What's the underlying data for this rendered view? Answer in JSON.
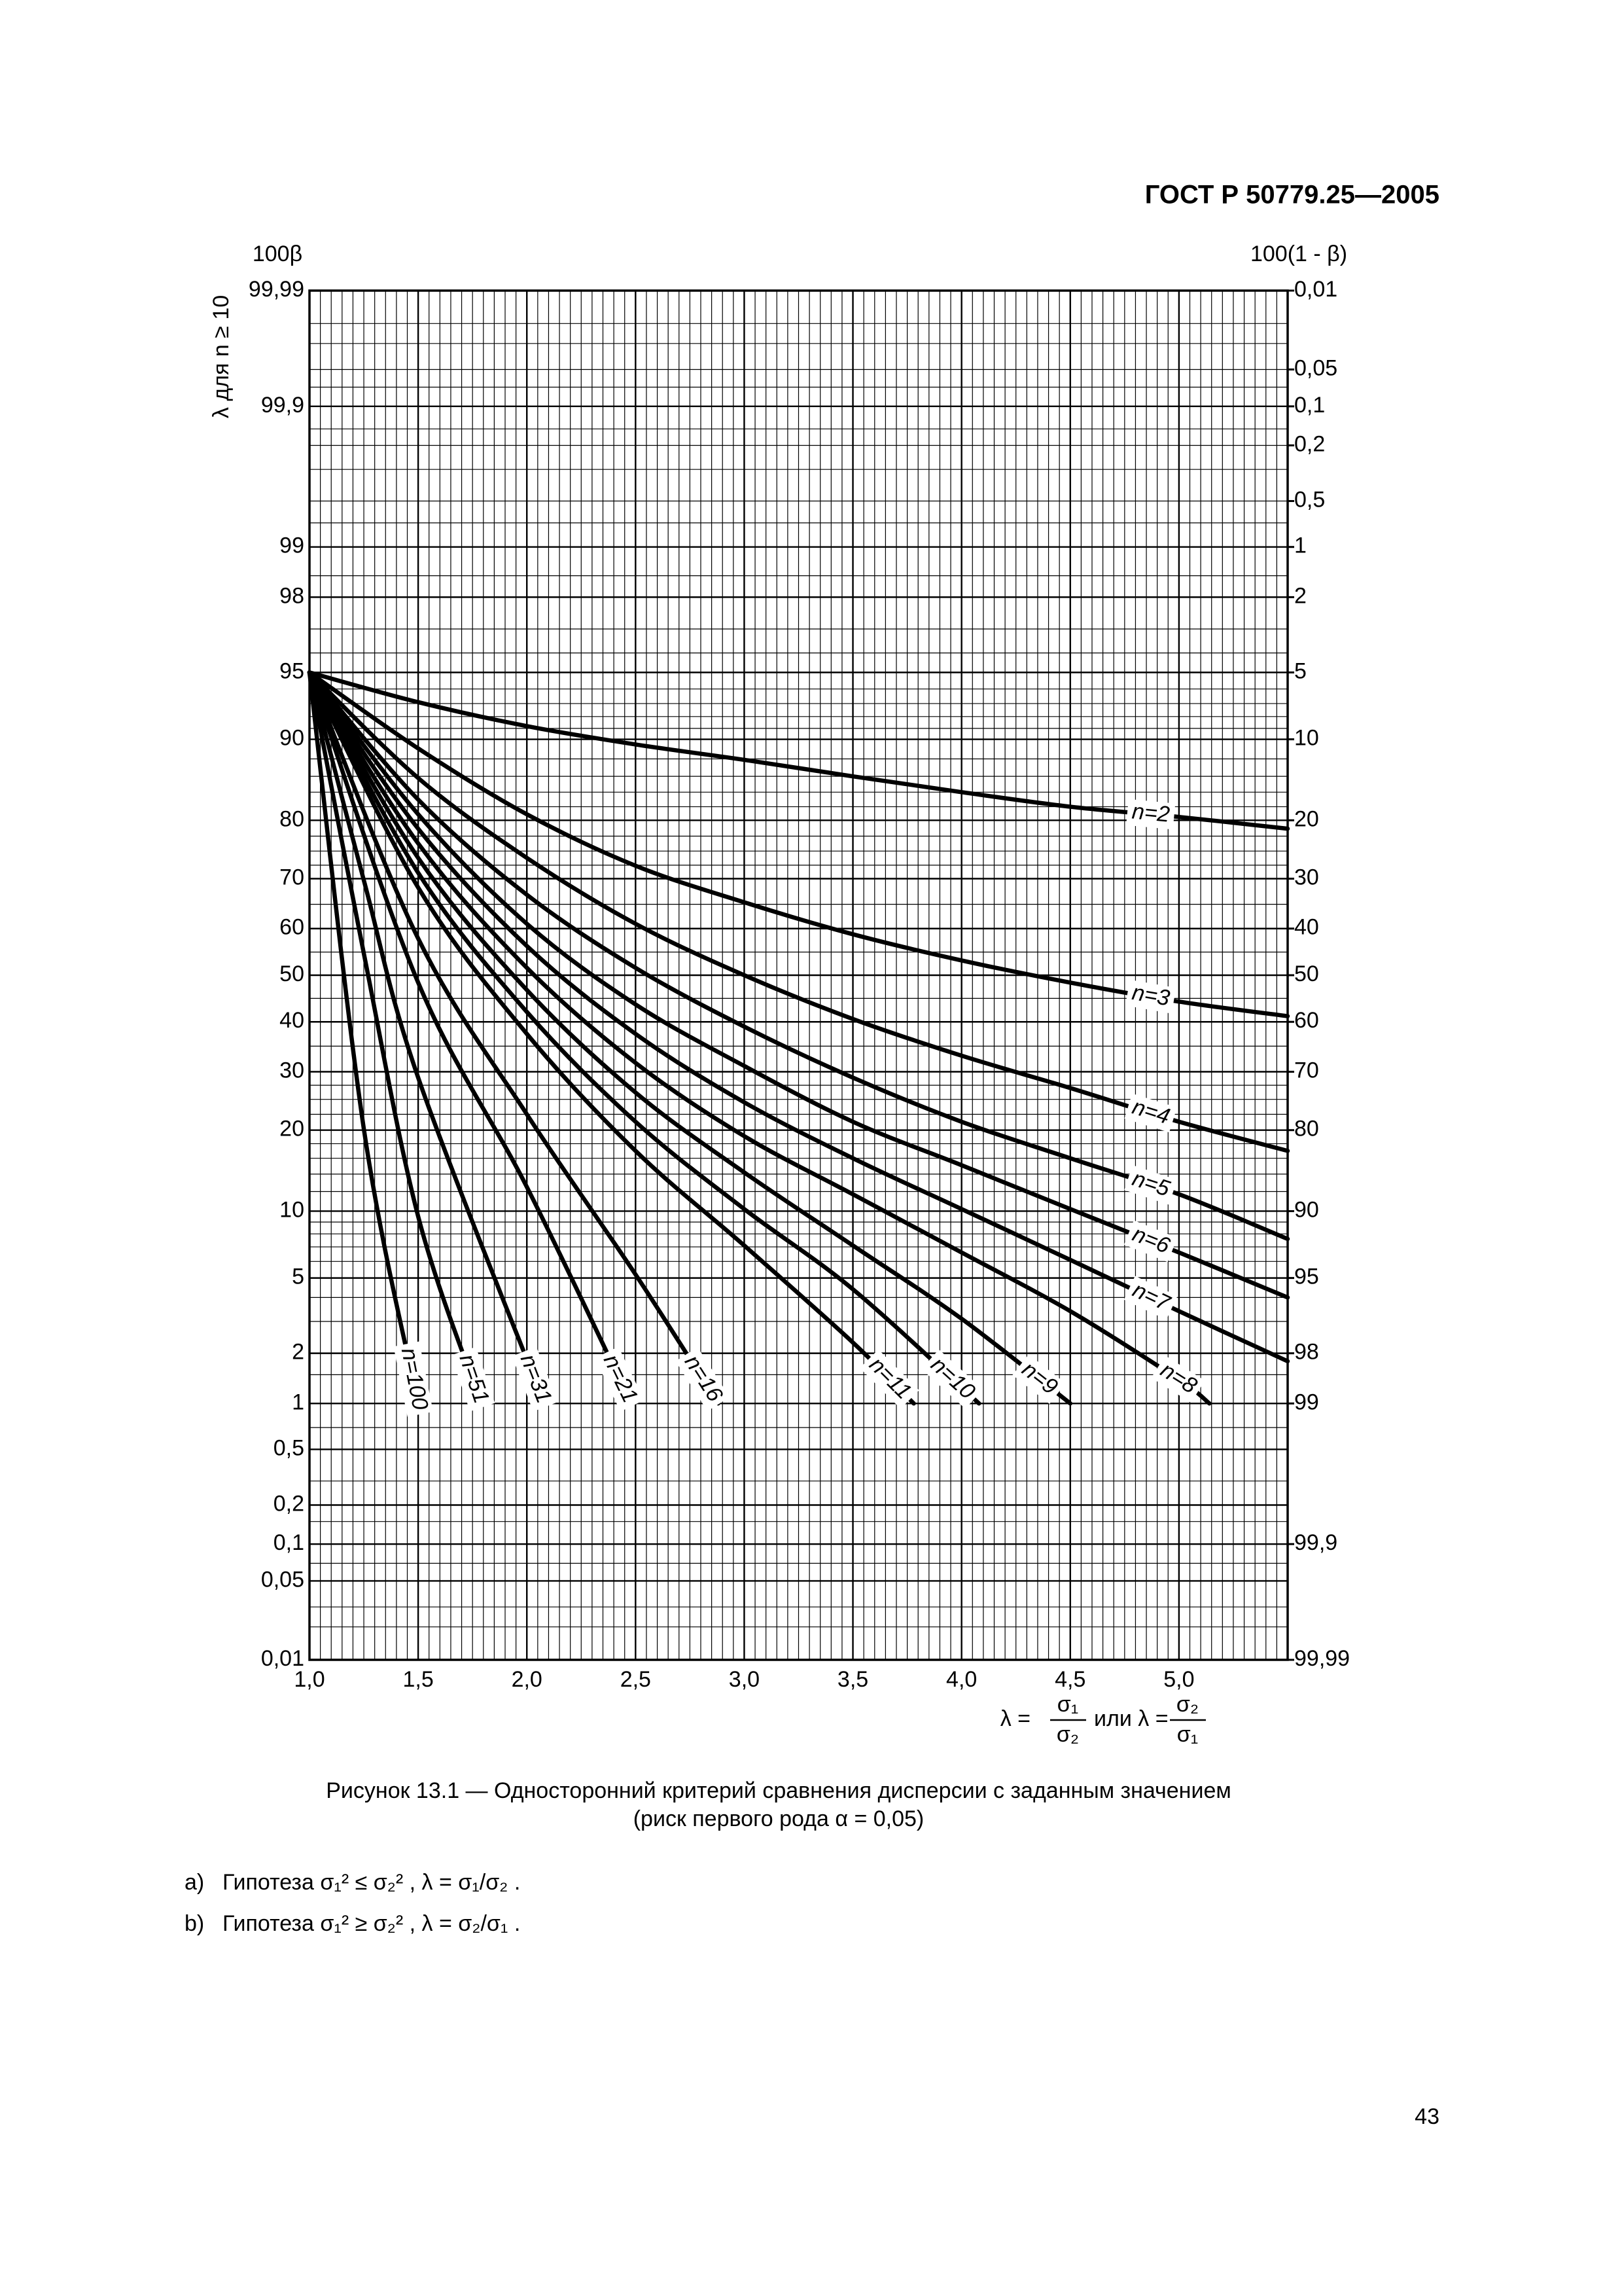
{
  "header": "ГОСТ Р 50779.25—2005",
  "chart_data": {
    "type": "line",
    "ylabel": "100β",
    "y2label": "100(1 - β)",
    "annotation": "λ для n ≥ 10",
    "scale": "probability",
    "xlim": [
      1,
      5.5
    ],
    "xticks": [
      {
        "value": 1,
        "label": "1,0"
      },
      {
        "value": 1.5,
        "label": "1,5"
      },
      {
        "value": 2,
        "label": "2,0"
      },
      {
        "value": 2.5,
        "label": "2,5"
      },
      {
        "value": 3,
        "label": "3,0"
      },
      {
        "value": 3.5,
        "label": "3,5"
      },
      {
        "value": 4,
        "label": "4,0"
      },
      {
        "value": 4.5,
        "label": "4,5"
      },
      {
        "value": 5,
        "label": "5,0"
      }
    ],
    "xgrid": [
      1,
      1.05,
      1.1,
      1.15,
      1.2,
      1.25,
      1.3,
      1.35,
      1.4,
      1.45,
      1.5,
      1.55,
      1.6,
      1.65,
      1.7,
      1.75,
      1.8,
      1.85,
      1.9,
      1.95,
      2,
      2.05,
      2.1,
      2.15,
      2.2,
      2.25,
      2.3,
      2.35,
      2.4,
      2.45,
      2.5,
      2.55,
      2.6,
      2.65,
      2.7,
      2.75,
      2.8,
      2.85,
      2.9,
      2.95,
      3,
      3.05,
      3.1,
      3.15,
      3.2,
      3.25,
      3.3,
      3.35,
      3.4,
      3.45,
      3.5,
      3.55,
      3.6,
      3.65,
      3.7,
      3.75,
      3.8,
      3.85,
      3.9,
      3.95,
      4,
      4.05,
      4.1,
      4.15,
      4.2,
      4.25,
      4.3,
      4.35,
      4.4,
      4.45,
      4.5,
      4.55,
      4.6,
      4.65,
      4.7,
      4.75,
      4.8,
      4.85,
      4.9,
      4.95,
      5,
      5.05,
      5.1,
      5.15,
      5.2,
      5.25,
      5.3,
      5.35,
      5.4,
      5.45,
      5.5
    ],
    "ylim": [
      0.01,
      99.99
    ],
    "yticks": [
      {
        "value": 99.99,
        "label": "99,99"
      },
      {
        "value": 99.9,
        "label": "99,9"
      },
      99,
      98,
      95,
      90,
      80,
      70,
      60,
      50,
      40,
      30,
      20,
      10,
      5,
      2,
      1,
      {
        "value": 0.5,
        "label": "0,5"
      },
      {
        "value": 0.2,
        "label": "0,2"
      },
      {
        "value": 0.1,
        "label": "0,1"
      },
      {
        "value": 0.05,
        "label": "0,05"
      },
      {
        "value": 0.01,
        "label": "0,01"
      }
    ],
    "y2lim": [
      99.99,
      0.01
    ],
    "y2ticks": [
      {
        "value": 0.01,
        "label": "0,01"
      },
      {
        "value": 0.05,
        "label": "0,05"
      },
      {
        "value": 0.1,
        "label": "0,1"
      },
      {
        "value": 0.2,
        "label": "0,2"
      },
      {
        "value": 0.5,
        "label": "0,5"
      },
      1,
      2,
      5,
      10,
      20,
      30,
      40,
      50,
      60,
      70,
      80,
      90,
      95,
      98,
      99,
      {
        "value": 99.9,
        "label": "99,9"
      },
      {
        "value": 99.99,
        "label": "99,99"
      }
    ],
    "ygrid": [
      0.01,
      0.02,
      0.03,
      0.05,
      0.07,
      0.1,
      0.15,
      0.2,
      0.3,
      0.5,
      0.7,
      1,
      1.5,
      2,
      3,
      4,
      5,
      6,
      7,
      8,
      9,
      10,
      12,
      14,
      16,
      18,
      20,
      22.5,
      25,
      27.5,
      30,
      35,
      40,
      45,
      50,
      55,
      60,
      65,
      70,
      72.5,
      75,
      77.5,
      80,
      82,
      84,
      86,
      88,
      90,
      91,
      92,
      93,
      94,
      95,
      96,
      97,
      98,
      98.5,
      99,
      99.3,
      99.5,
      99.7,
      99.8,
      99.85,
      99.9,
      99.93,
      99.95,
      99.97,
      99.98,
      99.99
    ],
    "grid": true,
    "color": "#000000",
    "series": [
      {
        "name": "n=2",
        "x": [
          1,
          1.5,
          2,
          2.5,
          3,
          3.5,
          4,
          4.5,
          5,
          5.5
        ],
        "values": [
          95,
          93.1,
          91.2,
          89.5,
          87.9,
          86,
          84,
          82,
          80.5,
          78.7
        ]
      },
      {
        "name": "n=3",
        "x": [
          1,
          1.5,
          2,
          2.5,
          3,
          3.5,
          4,
          4.5,
          5,
          5.5
        ],
        "values": [
          95,
          89.1,
          80.9,
          72.4,
          65.4,
          58.8,
          53.2,
          48.4,
          44.3,
          41.2
        ]
      },
      {
        "name": "n=4",
        "x": [
          1,
          1.5,
          2,
          2.5,
          3,
          3.5,
          4,
          4.5,
          5,
          5.5
        ],
        "values": [
          95,
          85.8,
          73.8,
          61,
          50,
          40.6,
          33.1,
          27,
          21.3,
          17
        ]
      },
      {
        "name": "n=5",
        "x": [
          1,
          1.5,
          2,
          2.5,
          3,
          3.5,
          4,
          4.5,
          5,
          5.5
        ],
        "values": [
          95,
          83,
          66.9,
          51.6,
          39,
          28.9,
          21.3,
          16,
          11.7,
          7.6
        ]
      },
      {
        "name": "n=6",
        "x": [
          1,
          1.5,
          2,
          2.5,
          3,
          3.5,
          4,
          4.5,
          5,
          5.5
        ],
        "values": [
          95,
          80.9,
          61,
          43.7,
          31.1,
          21.3,
          15.1,
          10.2,
          6.6,
          4
        ]
      },
      {
        "name": "n=7",
        "x": [
          1,
          1.5,
          2,
          2.5,
          3,
          3.5,
          4,
          4.5,
          5,
          5.5
        ],
        "values": [
          95,
          78.7,
          56.3,
          37.5,
          24.5,
          16,
          10.2,
          6.1,
          3.4,
          1.8
        ]
      },
      {
        "name": "n=8",
        "x": [
          1,
          1.5,
          2,
          2.5,
          3,
          3.5,
          4,
          4.5,
          5,
          5.14
        ],
        "values": [
          95,
          76.3,
          51.6,
          31.7,
          19.1,
          11.7,
          6.6,
          3.4,
          1.4,
          1
        ]
      },
      {
        "name": "n=9",
        "x": [
          1,
          1.5,
          2,
          2.5,
          3,
          3.5,
          4,
          4.5
        ],
        "values": [
          95,
          73.8,
          46.8,
          26.2,
          14.2,
          7.1,
          3.1,
          1
        ]
      },
      {
        "name": "n=10",
        "x": [
          1,
          1.5,
          2,
          2.5,
          3,
          3.5,
          4.08
        ],
        "values": [
          95,
          71.1,
          42.1,
          21.3,
          10.2,
          4.4,
          1
        ]
      },
      {
        "name": "n=11",
        "x": [
          1,
          1.5,
          2,
          2.5,
          3,
          3.5,
          3.78
        ],
        "values": [
          95,
          68.3,
          37.5,
          17,
          7.1,
          2.3,
          1
        ]
      },
      {
        "name": "n=16",
        "x": [
          1,
          1.5,
          2,
          2.5,
          2.88
        ],
        "values": [
          95,
          57.9,
          22.5,
          5.2,
          1
        ]
      },
      {
        "name": "n=21",
        "x": [
          1,
          1.5,
          2,
          2.48
        ],
        "values": [
          95,
          48.4,
          12.5,
          1
        ]
      },
      {
        "name": "n=31",
        "x": [
          1,
          1.25,
          1.5,
          2.08
        ],
        "values": [
          95,
          69.7,
          28.9,
          1
        ]
      },
      {
        "name": "n=51",
        "x": [
          1,
          1.25,
          1.5,
          1.79
        ],
        "values": [
          95,
          54.7,
          9.5,
          1
        ]
      },
      {
        "name": "n=100",
        "x": [
          1,
          1.25,
          1.5
        ],
        "values": [
          95,
          20.2,
          1
        ]
      }
    ],
    "xlabel": [
      "λ =",
      "σ₁",
      "σ₂",
      "или λ =",
      "σ₂",
      "σ₁"
    ]
  },
  "caption": [
    "Рисунок 13.1 — Односторонний критерий сравнения дисперсии с заданным значением",
    "(риск первого рода α = 0,05)"
  ],
  "notes": [
    {
      "marker": "a)",
      "text": "Гипотеза  σ₁² ≤ σ₂² ,  λ = σ₁/σ₂ ."
    },
    {
      "marker": "b)",
      "text": "Гипотеза  σ₁² ≥ σ₂² ,  λ = σ₂/σ₁ ."
    }
  ],
  "page_number": "43"
}
